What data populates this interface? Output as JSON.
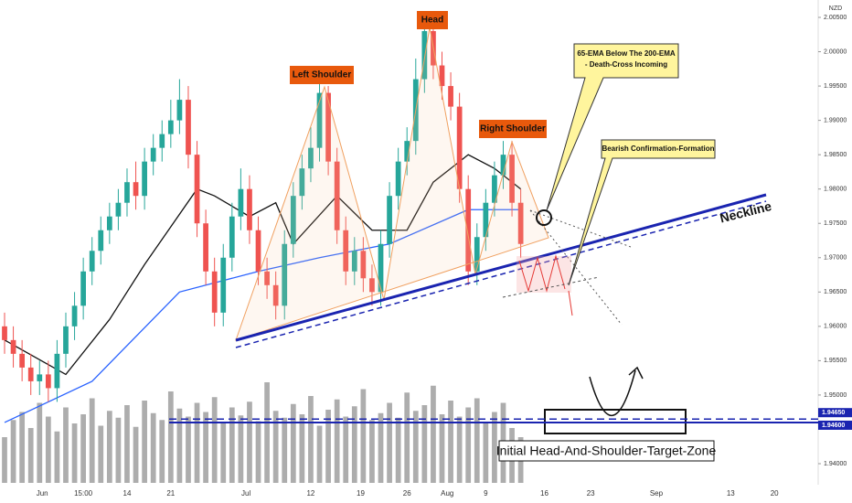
{
  "chart_data": {
    "type": "candlestick",
    "currency": "NZD",
    "xlim": [
      0,
      93
    ],
    "ylim": [
      1.94,
      2.005
    ],
    "yticks": [
      {
        "value": 1.94,
        "label": "1.94000"
      },
      {
        "value": 1.95,
        "label": "1.95000"
      },
      {
        "value": 1.955,
        "label": "1.95500"
      },
      {
        "value": 1.96,
        "label": "1.96000"
      },
      {
        "value": 1.965,
        "label": "1.96500"
      },
      {
        "value": 1.97,
        "label": "1.97000"
      },
      {
        "value": 1.975,
        "label": "1.97500"
      },
      {
        "value": 1.98,
        "label": "1.98000"
      },
      {
        "value": 1.985,
        "label": "1.98500"
      },
      {
        "value": 1.99,
        "label": "1.99000"
      },
      {
        "value": 1.995,
        "label": "1.99500"
      },
      {
        "value": 2.0,
        "label": "2.00000"
      },
      {
        "value": 2.005,
        "label": "2.00500"
      }
    ],
    "xticks": [
      {
        "value": 4.3,
        "label": "Jun"
      },
      {
        "value": 9,
        "label": "15:00"
      },
      {
        "value": 14,
        "label": "14"
      },
      {
        "value": 19,
        "label": "21"
      },
      {
        "value": 27.6,
        "label": "Jul"
      },
      {
        "value": 35,
        "label": "12"
      },
      {
        "value": 40.7,
        "label": "19"
      },
      {
        "value": 46,
        "label": "26"
      },
      {
        "value": 50.6,
        "label": "Aug"
      },
      {
        "value": 55,
        "label": "9"
      },
      {
        "value": 61.7,
        "label": "16"
      },
      {
        "value": 67,
        "label": "23"
      },
      {
        "value": 74.5,
        "label": "Sep"
      },
      {
        "value": 83,
        "label": "13"
      },
      {
        "value": 88,
        "label": "20"
      }
    ],
    "up_color": "#26a69a",
    "down_color": "#ef5350",
    "open": [
      1.96,
      1.958,
      1.956,
      1.954,
      1.952,
      1.953,
      1.951,
      1.956,
      1.96,
      1.963,
      1.968,
      1.971,
      1.974,
      1.976,
      1.978,
      1.981,
      1.979,
      1.984,
      1.986,
      1.988,
      1.99,
      1.993,
      1.985,
      1.975,
      1.968,
      1.962,
      1.97,
      1.976,
      1.98,
      1.974,
      1.968,
      1.966,
      1.963,
      1.972,
      1.979,
      1.983,
      1.986,
      1.994,
      1.984,
      1.974,
      1.968,
      1.971,
      1.967,
      1.965,
      1.972,
      1.979,
      1.984,
      1.987,
      1.996,
      2.003,
      1.998,
      1.995,
      1.992,
      1.98,
      1.968,
      1.973,
      1.978,
      1.982,
      1.985,
      1.978
    ],
    "high": [
      1.962,
      1.96,
      1.958,
      1.956,
      1.955,
      1.955,
      1.958,
      1.962,
      1.965,
      1.97,
      1.973,
      1.976,
      1.978,
      1.98,
      1.983,
      1.984,
      1.986,
      1.988,
      1.99,
      1.993,
      1.996,
      1.995,
      1.987,
      1.977,
      1.97,
      1.972,
      1.978,
      1.983,
      1.982,
      1.976,
      1.97,
      1.968,
      1.974,
      1.981,
      1.985,
      1.989,
      1.996,
      1.995,
      1.986,
      1.976,
      1.973,
      1.973,
      1.969,
      1.974,
      1.981,
      1.986,
      1.989,
      1.999,
      2.005,
      2.004,
      2.0,
      1.997,
      1.994,
      1.982,
      1.975,
      1.98,
      1.984,
      1.987,
      1.987,
      1.98
    ],
    "low": [
      1.956,
      1.954,
      1.952,
      1.95,
      1.95,
      1.949,
      1.949,
      1.954,
      1.958,
      1.961,
      1.966,
      1.969,
      1.972,
      1.974,
      1.976,
      1.977,
      1.977,
      1.982,
      1.984,
      1.986,
      1.988,
      1.983,
      1.973,
      1.966,
      1.96,
      1.96,
      1.968,
      1.974,
      1.972,
      1.966,
      1.964,
      1.961,
      1.961,
      1.97,
      1.977,
      1.981,
      1.984,
      1.982,
      1.972,
      1.966,
      1.966,
      1.965,
      1.963,
      1.963,
      1.97,
      1.977,
      1.982,
      1.985,
      1.994,
      1.996,
      1.993,
      1.99,
      1.978,
      1.966,
      1.966,
      1.971,
      1.976,
      1.98,
      1.976,
      1.97
    ],
    "close": [
      1.958,
      1.956,
      1.954,
      1.952,
      1.953,
      1.951,
      1.956,
      1.96,
      1.963,
      1.968,
      1.971,
      1.974,
      1.976,
      1.978,
      1.981,
      1.979,
      1.984,
      1.986,
      1.988,
      1.99,
      1.993,
      1.985,
      1.975,
      1.968,
      1.962,
      1.97,
      1.976,
      1.98,
      1.974,
      1.968,
      1.966,
      1.963,
      1.972,
      1.979,
      1.983,
      1.986,
      1.994,
      1.984,
      1.974,
      1.968,
      1.971,
      1.967,
      1.965,
      1.972,
      1.979,
      1.984,
      1.987,
      1.996,
      2.003,
      1.998,
      1.995,
      1.992,
      1.98,
      1.968,
      1.973,
      1.978,
      1.982,
      1.985,
      1.978,
      1.972
    ],
    "volume": [
      40,
      55,
      62,
      48,
      70,
      58,
      45,
      66,
      52,
      60,
      74,
      50,
      63,
      57,
      68,
      49,
      72,
      61,
      55,
      80,
      65,
      58,
      70,
      62,
      75,
      52,
      66,
      59,
      71,
      54,
      88,
      63,
      57,
      69,
      60,
      76,
      50,
      64,
      73,
      58,
      67,
      82,
      55,
      61,
      70,
      57,
      79,
      63,
      68,
      85,
      60,
      72,
      58,
      66,
      74,
      53,
      62,
      70,
      48,
      40
    ],
    "volume_color": "#8a8a8a",
    "lines": [
      {
        "color": "#111111",
        "x": [
          0,
          7,
          12,
          16,
          22,
          24,
          28,
          31,
          33,
          38,
          42,
          46,
          49,
          53,
          56,
          59
        ],
        "values": [
          1.958,
          1.953,
          1.961,
          1.969,
          1.98,
          1.979,
          1.976,
          1.978,
          1.972,
          1.979,
          1.974,
          1.974,
          1.981,
          1.985,
          1.983,
          1.98
        ]
      },
      {
        "color": "#2962ff",
        "x": [
          0,
          10,
          20,
          29,
          36,
          44,
          53,
          56,
          59
        ],
        "values": [
          1.946,
          1.952,
          1.965,
          1.968,
          1.97,
          1.972,
          1.977,
          1.977,
          1.977
        ]
      }
    ],
    "levels": [
      {
        "value": 1.9465,
        "label": "1.94650"
      },
      {
        "value": 1.946,
        "label": "1.94600"
      }
    ],
    "annotations": {
      "head": "Head",
      "left_shoulder": "Left Shoulder",
      "right_shoulder": "Right Shoulder",
      "death_cross": [
        "65-EMA Below The 200-EMA",
        "- Death-Cross Incoming"
      ],
      "bearish": "Bearish Confirmation-Formation",
      "neckline": "Neckline",
      "target_zone": "Initial Head-And-Shoulder-Target-Zone"
    }
  }
}
